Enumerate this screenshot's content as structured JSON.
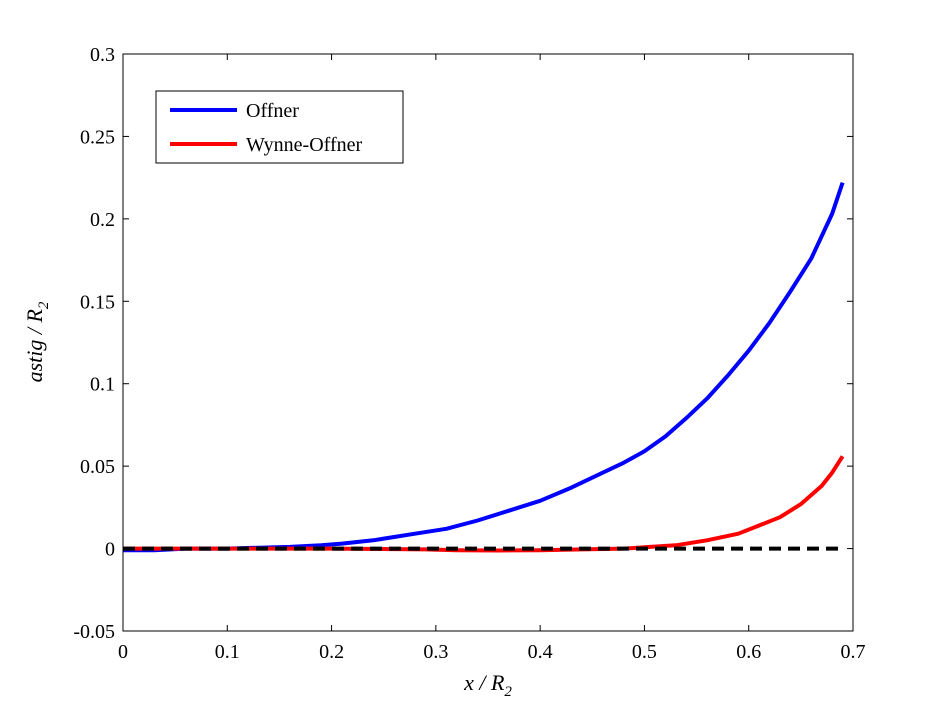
{
  "chart_data": {
    "type": "line",
    "title": "",
    "xlabel": {
      "main": "x / R",
      "subscript": "2"
    },
    "ylabel": {
      "main": "astig / R",
      "subscript": "2"
    },
    "xlim": [
      0,
      0.7
    ],
    "ylim": [
      -0.05,
      0.3
    ],
    "xticks": [
      0,
      0.1,
      0.2,
      0.3,
      0.4,
      0.5,
      0.6,
      0.7
    ],
    "yticks": [
      -0.05,
      0,
      0.05,
      0.1,
      0.15,
      0.2,
      0.25,
      0.3
    ],
    "xtick_labels": [
      "0",
      "0.1",
      "0.2",
      "0.3",
      "0.4",
      "0.5",
      "0.6",
      "0.7"
    ],
    "ytick_labels": [
      "-0.05",
      "0",
      "0.05",
      "0.1",
      "0.15",
      "0.2",
      "0.25",
      "0.3"
    ],
    "grid": false,
    "legend_position": "top-left",
    "series": [
      {
        "name": "Offner",
        "color": "#0000ff",
        "style": "solid",
        "x": [
          0,
          0.03,
          0.06,
          0.1,
          0.13,
          0.16,
          0.19,
          0.21,
          0.24,
          0.26,
          0.28,
          0.31,
          0.34,
          0.37,
          0.4,
          0.43,
          0.46,
          0.48,
          0.5,
          0.52,
          0.54,
          0.56,
          0.58,
          0.6,
          0.62,
          0.64,
          0.66,
          0.68,
          0.69
        ],
        "y": [
          -0.001,
          -0.001,
          0,
          0,
          0.0005,
          0.001,
          0.002,
          0.003,
          0.005,
          0.007,
          0.009,
          0.012,
          0.017,
          0.023,
          0.029,
          0.037,
          0.046,
          0.052,
          0.059,
          0.068,
          0.079,
          0.091,
          0.105,
          0.12,
          0.137,
          0.156,
          0.176,
          0.203,
          0.222
        ]
      },
      {
        "name": "Wynne-Offner",
        "color": "#ff0000",
        "style": "solid",
        "x": [
          0,
          0.1,
          0.2,
          0.29,
          0.32,
          0.36,
          0.4,
          0.44,
          0.48,
          0.5,
          0.53,
          0.56,
          0.59,
          0.61,
          0.63,
          0.65,
          0.67,
          0.68,
          0.69
        ],
        "y": [
          0,
          0,
          0,
          -0.0005,
          -0.001,
          -0.0012,
          -0.001,
          -0.0005,
          0,
          0.0008,
          0.002,
          0.005,
          0.009,
          0.014,
          0.019,
          0.027,
          0.038,
          0.046,
          0.056
        ]
      },
      {
        "name": "",
        "color": "#000000",
        "style": "dashed",
        "x": [
          0,
          0.69
        ],
        "y": [
          0,
          0
        ]
      }
    ]
  }
}
